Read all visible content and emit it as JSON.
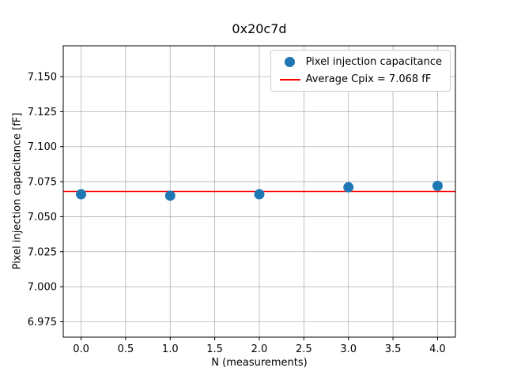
{
  "chart_data": {
    "type": "scatter",
    "title": "0x20c7d",
    "xlabel": "N (measurements)",
    "ylabel": "Pixel injection capacitance [fF]",
    "x": [
      0,
      1,
      2,
      3,
      4
    ],
    "y": [
      7.066,
      7.065,
      7.066,
      7.071,
      7.072
    ],
    "series_name": "Pixel injection capacitance",
    "average_line": {
      "value": 7.068,
      "label": "Average Cpix = 7.068 fF",
      "color": "#ff0000"
    },
    "marker_color": "#1f77b4",
    "xlim": [
      -0.2,
      4.2
    ],
    "ylim": [
      6.964,
      7.172
    ],
    "xticks": [
      0.0,
      0.5,
      1.0,
      1.5,
      2.0,
      2.5,
      3.0,
      3.5,
      4.0
    ],
    "xtick_labels": [
      "0.0",
      "0.5",
      "1.0",
      "1.5",
      "2.0",
      "2.5",
      "3.0",
      "3.5",
      "4.0"
    ],
    "yticks": [
      6.975,
      7.0,
      7.025,
      7.05,
      7.075,
      7.1,
      7.125,
      7.15
    ],
    "ytick_labels": [
      "6.975",
      "7.000",
      "7.025",
      "7.050",
      "7.075",
      "7.100",
      "7.125",
      "7.150"
    ],
    "grid": true,
    "grid_color": "#b0b0b0",
    "legend_position": "upper right",
    "legend": [
      "Pixel injection capacitance",
      "Average Cpix = 7.068 fF"
    ]
  }
}
